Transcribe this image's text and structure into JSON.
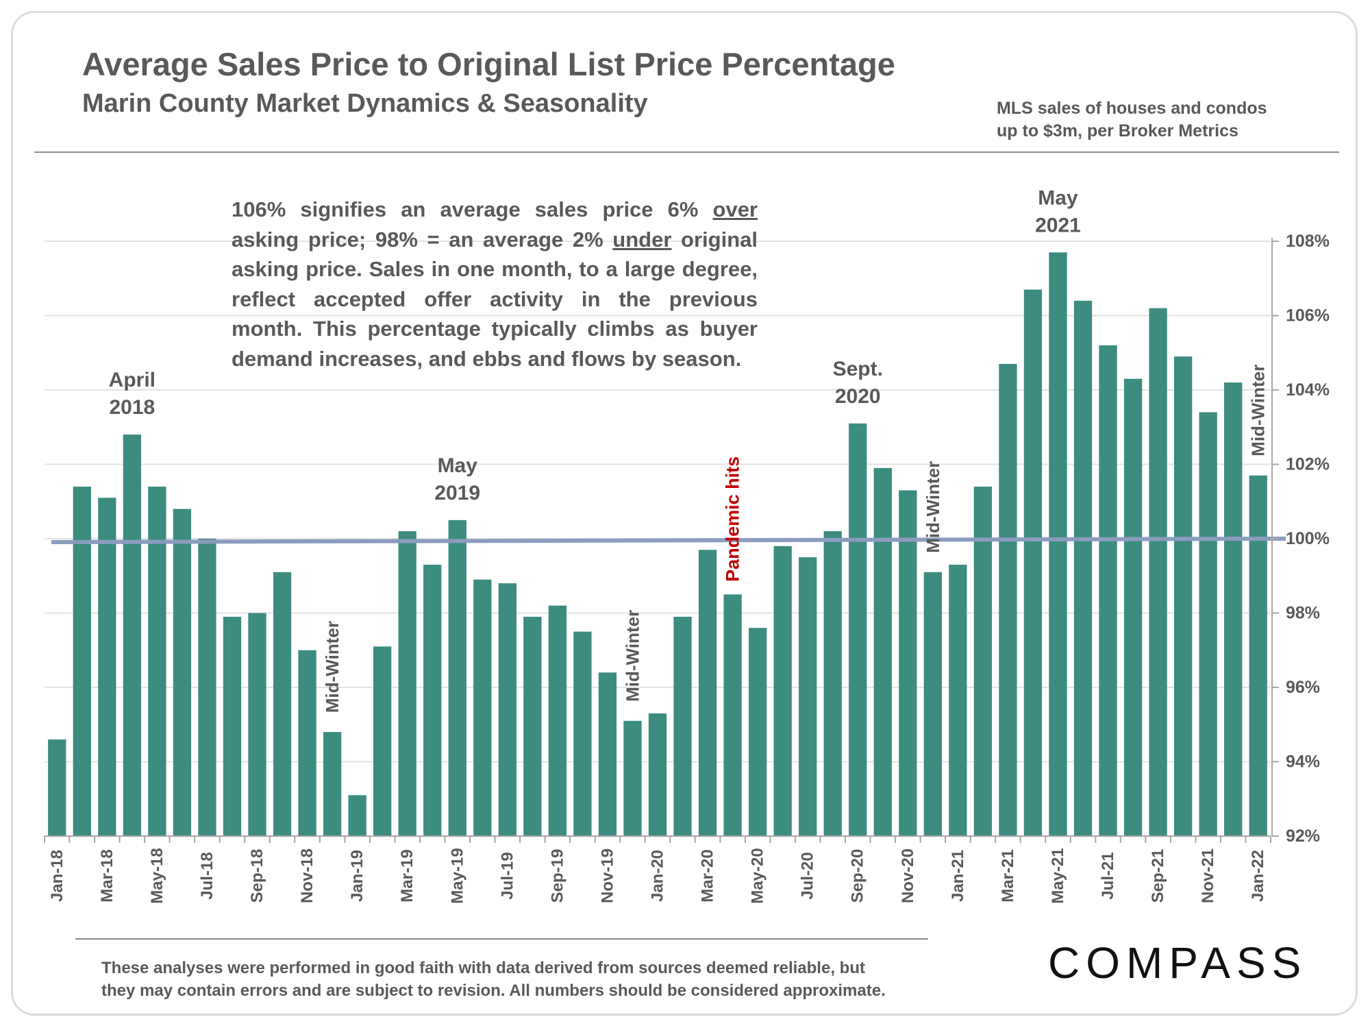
{
  "header": {
    "title": "Average Sales Price to Original List Price Percentage",
    "subtitle": "Marin County Market Dynamics & Seasonality",
    "source_line1": "MLS sales of houses and condos",
    "source_line2": "up to $3m, per Broker Metrics"
  },
  "note": {
    "part1": "106% signifies an average sales price 6% ",
    "over": "over",
    "part2": " asking price; 98% = an average 2% ",
    "under": "under",
    "part3": " original asking price. Sales in one month, to a large degree, reflect accepted offer activity in the previous month. This percentage typically climbs as buyer demand increases, and ebbs and flows by season."
  },
  "footer": {
    "disclaimer_line1": "These analyses were performed in good faith with data derived from sources deemed reliable, but",
    "disclaimer_line2": "they may contain errors and are subject to revision. All numbers should be considered  approximate.",
    "logo": "COMPASS"
  },
  "colors": {
    "bar": "#3c8c80",
    "reference_line": "#8c9cc0",
    "text": "#595959",
    "pandemic": "#c00000",
    "grid": "#e3e3e3"
  },
  "chart_data": {
    "type": "bar",
    "categories": [
      "Jan-18",
      "Feb-18",
      "Mar-18",
      "Apr-18",
      "May-18",
      "Jun-18",
      "Jul-18",
      "Aug-18",
      "Sep-18",
      "Oct-18",
      "Nov-18",
      "Dec-18",
      "Jan-19",
      "Feb-19",
      "Mar-19",
      "Apr-19",
      "May-19",
      "Jun-19",
      "Jul-19",
      "Aug-19",
      "Sep-19",
      "Oct-19",
      "Nov-19",
      "Dec-19",
      "Jan-20",
      "Feb-20",
      "Mar-20",
      "Apr-20",
      "May-20",
      "Jun-20",
      "Jul-20",
      "Aug-20",
      "Sep-20",
      "Oct-20",
      "Nov-20",
      "Dec-20",
      "Jan-21",
      "Feb-21",
      "Mar-21",
      "Apr-21",
      "May-21",
      "Jun-21",
      "Jul-21",
      "Aug-21",
      "Sep-21",
      "Oct-21",
      "Nov-21",
      "Dec-21",
      "Jan-22"
    ],
    "tick_labels": [
      "Jan-18",
      "Mar-18",
      "May-18",
      "Jul-18",
      "Sep-18",
      "Nov-18",
      "Jan-19",
      "Mar-19",
      "May-19",
      "Jul-19",
      "Sep-19",
      "Nov-19",
      "Jan-20",
      "Mar-20",
      "May-20",
      "Jul-20",
      "Sep-20",
      "Nov-20",
      "Jan-21",
      "Mar-21",
      "May-21",
      "Jul-21",
      "Sep-21",
      "Nov-21",
      "Jan-22"
    ],
    "values": [
      94.6,
      101.4,
      101.1,
      102.8,
      101.4,
      100.8,
      100.0,
      97.9,
      98.0,
      99.1,
      97.0,
      94.8,
      93.1,
      97.1,
      100.2,
      99.3,
      100.5,
      98.9,
      98.8,
      97.9,
      98.2,
      97.5,
      96.4,
      95.1,
      95.3,
      97.9,
      99.7,
      98.5,
      97.6,
      99.8,
      99.5,
      100.2,
      103.1,
      101.9,
      101.3,
      99.1,
      99.3,
      101.4,
      104.7,
      106.7,
      107.7,
      106.4,
      105.2,
      104.3,
      106.2,
      104.9,
      103.4,
      104.2,
      101.7
    ],
    "unit": "%",
    "ylim": [
      92,
      108
    ],
    "yticks": [
      92,
      94,
      96,
      98,
      100,
      102,
      104,
      106,
      108
    ],
    "ytick_labels": [
      "92%",
      "94%",
      "96%",
      "98%",
      "100%",
      "102%",
      "104%",
      "106%",
      "108%"
    ],
    "y_axis_side": "right",
    "reference_line": {
      "value": 100,
      "label": "100%"
    },
    "grid": true,
    "annotations": [
      {
        "lines": [
          "April",
          "2018"
        ],
        "category": "Apr-18",
        "style": "label"
      },
      {
        "lines": [
          "May",
          "2019"
        ],
        "category": "May-19",
        "style": "label"
      },
      {
        "lines": [
          "Sept.",
          "2020"
        ],
        "category": "Sep-20",
        "style": "label"
      },
      {
        "lines": [
          "May",
          "2021"
        ],
        "category": "May-21",
        "style": "label"
      },
      {
        "lines": [
          "Mid-Winter"
        ],
        "category": "Dec-18",
        "style": "vertical"
      },
      {
        "lines": [
          "Mid-Winter"
        ],
        "category": "Dec-19",
        "style": "vertical"
      },
      {
        "lines": [
          "Mid-Winter"
        ],
        "category": "Dec-20",
        "style": "vertical"
      },
      {
        "lines": [
          "Mid-Winter"
        ],
        "category": "Jan-22",
        "style": "vertical"
      },
      {
        "lines": [
          "Pandemic hits"
        ],
        "category": "Apr-20",
        "style": "vertical-red"
      }
    ]
  }
}
